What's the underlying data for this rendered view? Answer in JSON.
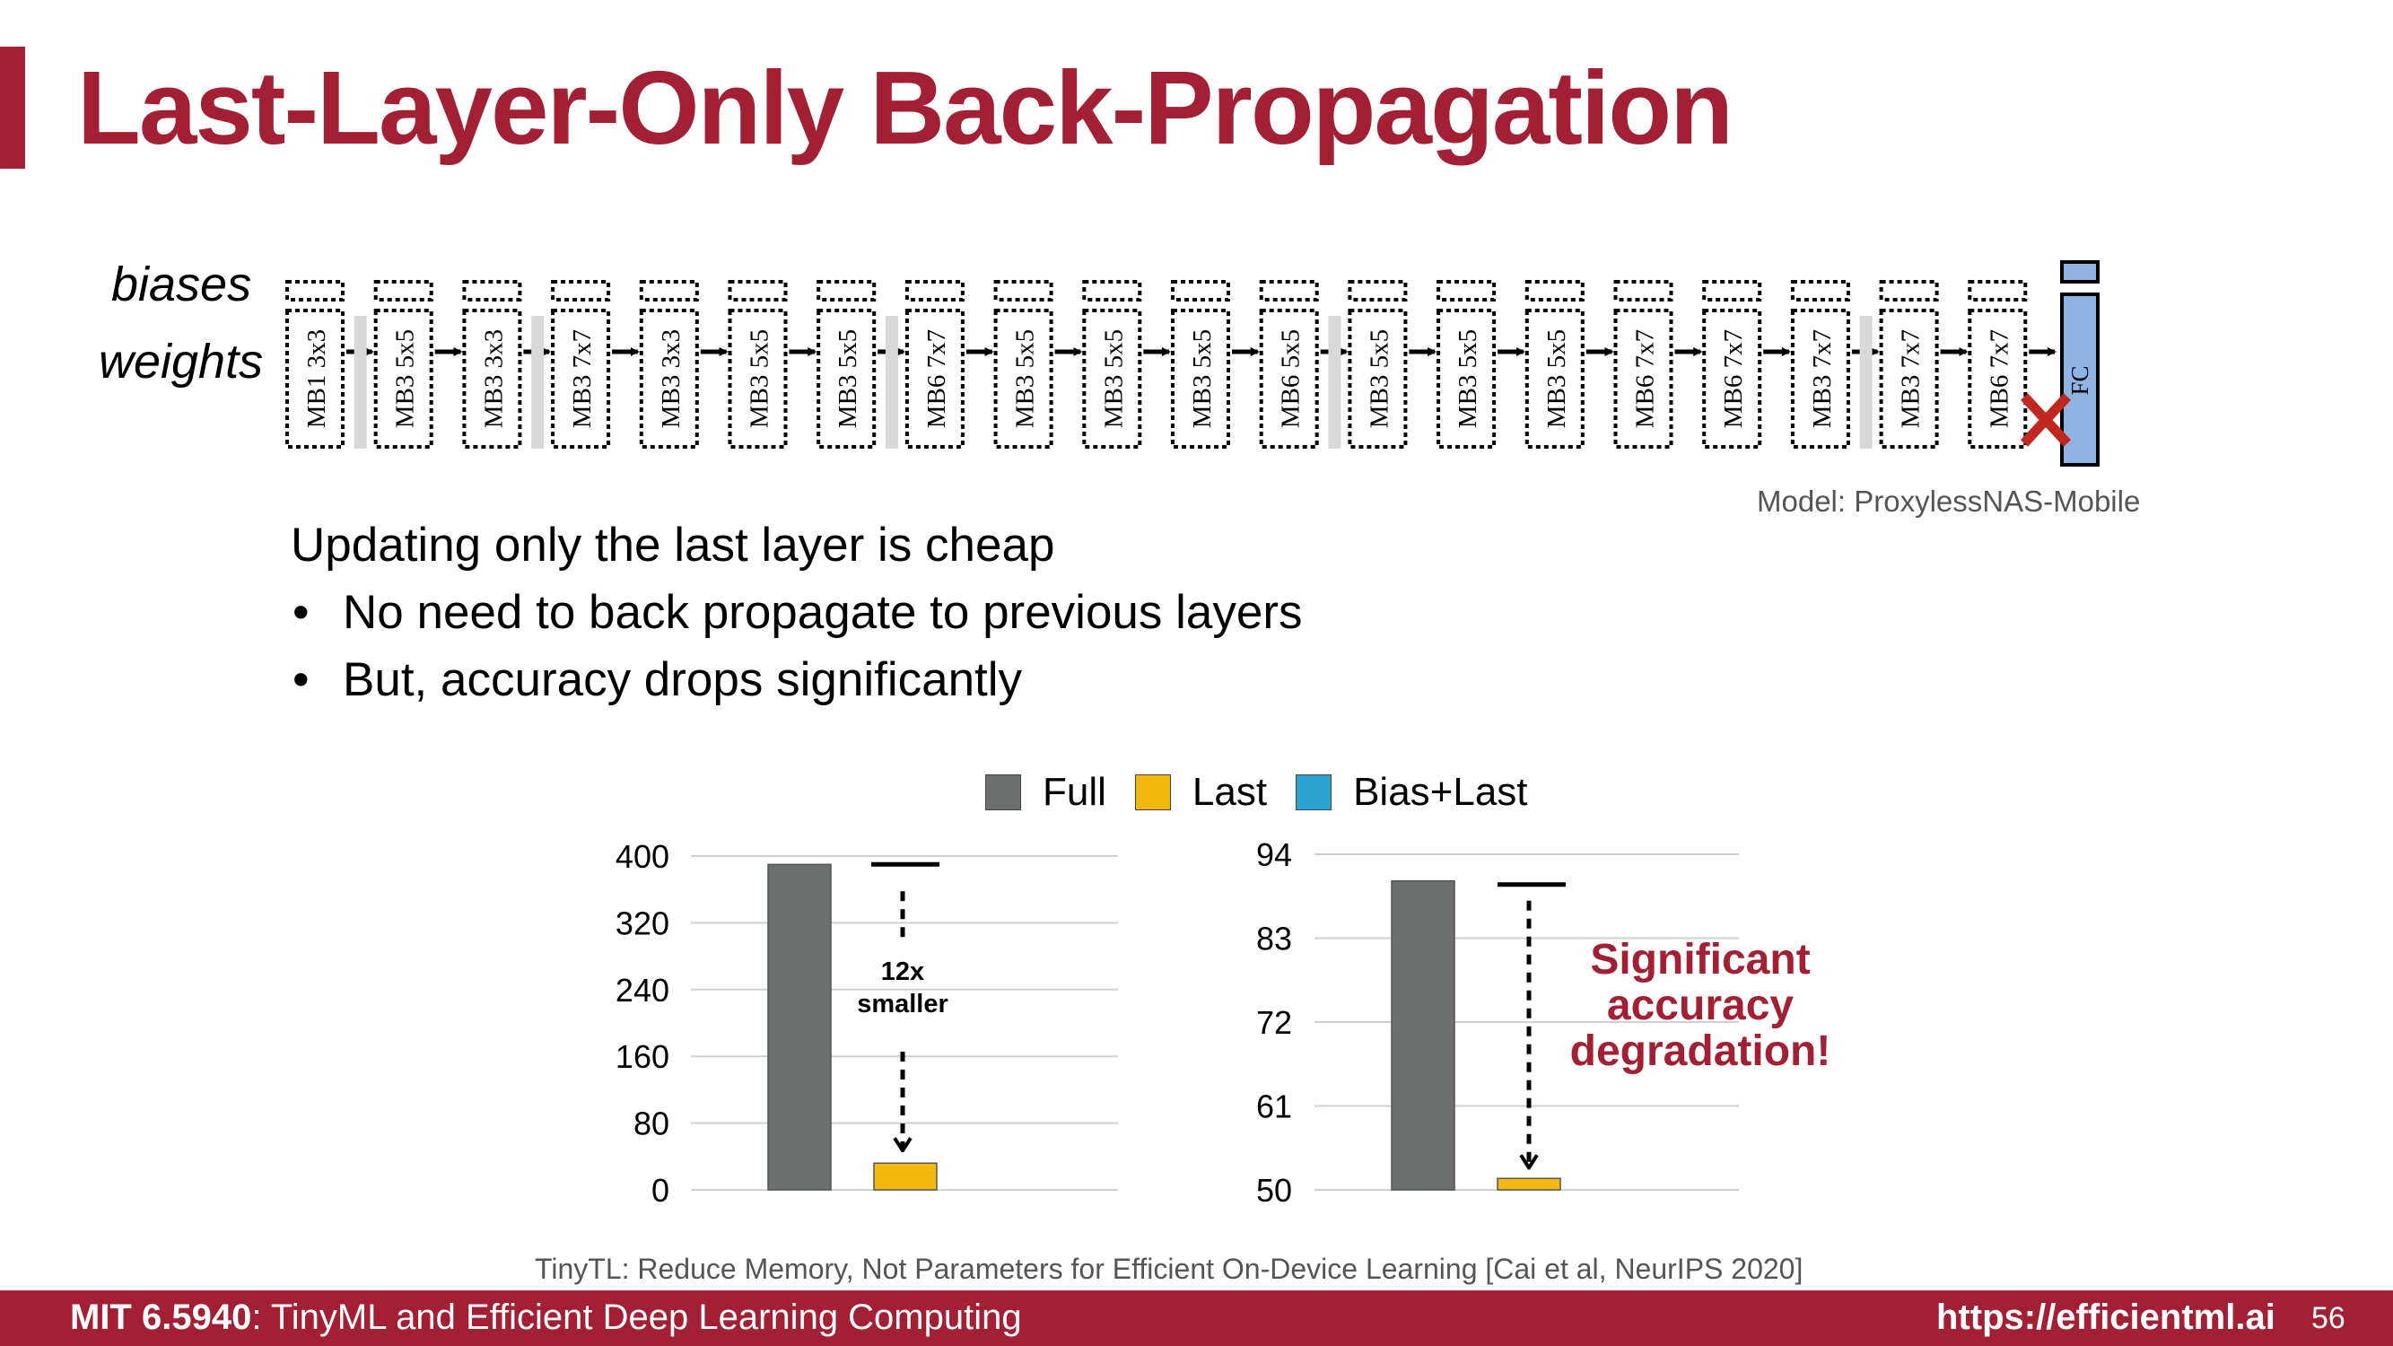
{
  "title": "Last-Layer-Only Back-Propagation",
  "diagram": {
    "row_labels": {
      "biases": "biases",
      "weights": "weights"
    },
    "blocks": [
      "MB1 3x3",
      "MB3 5x5",
      "MB3 3x3",
      "MB3 7x7",
      "MB3 3x3",
      "MB3 5x5",
      "MB3 5x5",
      "MB6 7x7",
      "MB3 5x5",
      "MB3 5x5",
      "MB3 5x5",
      "MB6 5x5",
      "MB3 5x5",
      "MB3 5x5",
      "MB3 5x5",
      "MB6 7x7",
      "MB6 7x7",
      "MB3 7x7",
      "MB3 7x7",
      "MB6 7x7"
    ],
    "final_layer": "FC",
    "model_note": "Model: ProxylessNAS-Mobile"
  },
  "text": {
    "headline": "Updating only the last layer is cheap",
    "bullets": [
      "No need to back propagate to previous layers",
      "But, accuracy drops significantly"
    ]
  },
  "legend": [
    {
      "label": "Full",
      "color": "#6c706e"
    },
    {
      "label": "Last",
      "color": "#f3b90f"
    },
    {
      "label": "Bias+Last",
      "color": "#2aa3d3"
    }
  ],
  "chart_data": [
    {
      "type": "bar",
      "categories": [
        "Full",
        "Last"
      ],
      "values": [
        390,
        32
      ],
      "yticks": [
        0,
        80,
        160,
        240,
        320,
        400
      ],
      "ylim": [
        0,
        400
      ],
      "annotation": "12x smaller",
      "annotation_lines": [
        "12x",
        "smaller"
      ],
      "grid": true
    },
    {
      "type": "bar",
      "categories": [
        "Full",
        "Last"
      ],
      "values": [
        90.5,
        51.5
      ],
      "yticks": [
        50,
        61,
        72,
        83,
        94
      ],
      "ylim": [
        50,
        94
      ],
      "annotation": "Significant accuracy degradation!",
      "annotation_lines": [
        "Significant",
        "accuracy",
        "degradation!"
      ],
      "grid": true
    }
  ],
  "colors": {
    "accent": "#a31f34",
    "full": "#6c706e",
    "last": "#f3b90f",
    "bias_last": "#2aa3d3",
    "fc": "#8fb4e3",
    "cross": "#c0281f"
  },
  "citation": "TinyTL: Reduce Memory, Not Parameters for Efficient On-Device Learning [Cai et al, NeurIPS 2020]",
  "footer": {
    "course_code": "MIT 6.5940",
    "course_name": ": TinyML and Efficient Deep Learning Computing",
    "url": "https://efficientml.ai",
    "page": "56"
  }
}
